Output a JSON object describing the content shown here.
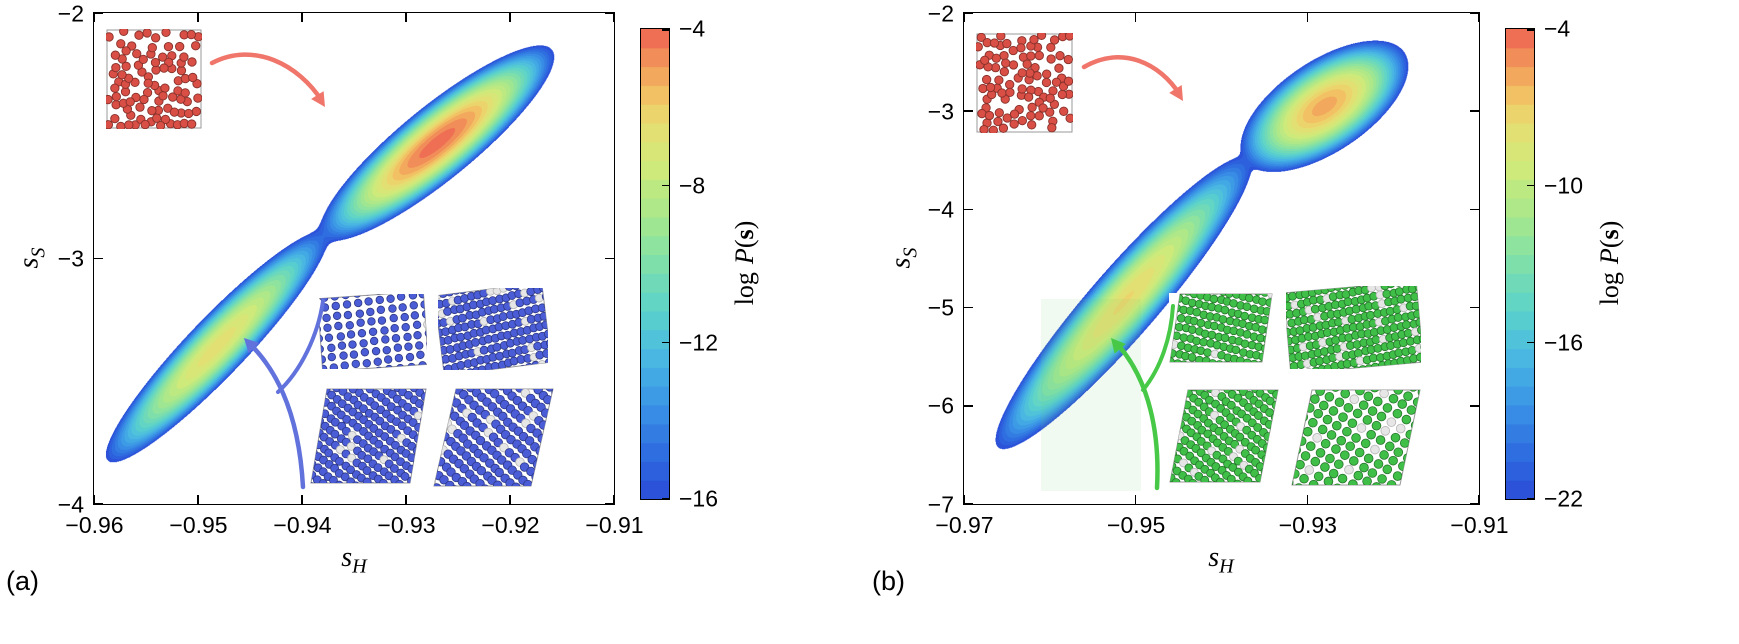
{
  "figure": {
    "colormap": [
      {
        "t": 0.0,
        "c": "#2a4bd7"
      },
      {
        "t": 0.1,
        "c": "#2f6ee0"
      },
      {
        "t": 0.2,
        "c": "#3a93e6"
      },
      {
        "t": 0.3,
        "c": "#49b7e2"
      },
      {
        "t": 0.4,
        "c": "#5bd2cb"
      },
      {
        "t": 0.5,
        "c": "#7edfab"
      },
      {
        "t": 0.6,
        "c": "#a6e88c"
      },
      {
        "t": 0.7,
        "c": "#cdea7b"
      },
      {
        "t": 0.8,
        "c": "#e9de71"
      },
      {
        "t": 0.88,
        "c": "#f3b75f"
      },
      {
        "t": 0.94,
        "c": "#f18d58"
      },
      {
        "t": 1.0,
        "c": "#ee6054"
      }
    ],
    "levels": 25
  },
  "chart_data": [
    {
      "type": "contour",
      "panel": "a",
      "corner_label": "(a)",
      "xlabel": {
        "base": "s",
        "sub": "H"
      },
      "ylabel": {
        "base": "s",
        "sub": "S"
      },
      "xlim": [
        -0.96,
        -0.91
      ],
      "ylim": [
        -4,
        -2
      ],
      "x_ticks": [
        {
          "v": -0.96,
          "label": "−0.96"
        },
        {
          "v": -0.95,
          "label": "−0.95"
        },
        {
          "v": -0.94,
          "label": "−0.94"
        },
        {
          "v": -0.93,
          "label": "−0.93"
        },
        {
          "v": -0.92,
          "label": "−0.92"
        },
        {
          "v": -0.91,
          "label": "−0.91"
        }
      ],
      "y_ticks": [
        {
          "v": -2,
          "label": "−2"
        },
        {
          "v": -3,
          "label": "−3"
        },
        {
          "v": -4,
          "label": "−4"
        }
      ],
      "colorbar": {
        "vmin": -16,
        "vmax": -4,
        "ticks": [
          {
            "v": -4,
            "label": "−4"
          },
          {
            "v": -8,
            "label": "−8"
          },
          {
            "v": -12,
            "label": "−12"
          },
          {
            "v": -16,
            "label": "−16"
          }
        ],
        "label": {
          "word": "log",
          "func": "P",
          "open": "(",
          "arg": "s",
          "close": ")"
        }
      },
      "lobes": [
        {
          "name": "liquid-basin",
          "center": [
            -0.927,
            -2.53
          ],
          "angle_deg": 41,
          "sigma": [
            0.06,
            0.015
          ],
          "peak_logP": -4.2
        },
        {
          "name": "solid-basin",
          "center": [
            -0.9482,
            -3.36
          ],
          "angle_deg": 48,
          "sigma": [
            0.072,
            0.0133
          ],
          "peak_logP": -6.6
        }
      ],
      "insets": {
        "liquid": {
          "name": "disordered-liquid-snapshot",
          "particle_color": "#d94f45"
        },
        "solid": {
          "name": "ordered-crystal-snapshots",
          "count": 4,
          "particle_color": "#4a5cd6"
        }
      },
      "arrow_colors": {
        "liquid": "#f0756a",
        "solid": "#6272dd"
      }
    },
    {
      "type": "contour",
      "panel": "b",
      "corner_label": "(b)",
      "xlabel": {
        "base": "s",
        "sub": "H"
      },
      "ylabel": {
        "base": "s",
        "sub": "S"
      },
      "xlim": [
        -0.97,
        -0.91
      ],
      "ylim": [
        -7,
        -2
      ],
      "x_ticks": [
        {
          "v": -0.97,
          "label": "−0.97"
        },
        {
          "v": -0.95,
          "label": "−0.95"
        },
        {
          "v": -0.93,
          "label": "−0.93"
        },
        {
          "v": -0.91,
          "label": "−0.91"
        }
      ],
      "y_ticks": [
        {
          "v": -2,
          "label": "−2"
        },
        {
          "v": -3,
          "label": "−3"
        },
        {
          "v": -4,
          "label": "−4"
        },
        {
          "v": -5,
          "label": "−5"
        },
        {
          "v": -6,
          "label": "−6"
        },
        {
          "v": -7,
          "label": "−7"
        }
      ],
      "colorbar": {
        "vmin": -22,
        "vmax": -4,
        "ticks": [
          {
            "v": -4,
            "label": "−4"
          },
          {
            "v": -10,
            "label": "−10"
          },
          {
            "v": -16,
            "label": "−16"
          },
          {
            "v": -22,
            "label": "−22"
          }
        ],
        "label": {
          "word": "log",
          "func": "P",
          "open": "(",
          "arg": "s",
          "close": ")"
        }
      },
      "lobes": [
        {
          "name": "liquid-basin",
          "center": [
            -0.928,
            -2.95
          ],
          "angle_deg": 36,
          "sigma": [
            0.0334,
            0.016
          ],
          "peak_logP": -5.8
        },
        {
          "name": "solid-basin",
          "center": [
            -0.9514,
            -4.95
          ],
          "angle_deg": 50.5,
          "sigma": [
            0.071,
            0.0126
          ],
          "peak_logP": -7.5
        }
      ],
      "insets": {
        "liquid": {
          "name": "disordered-liquid-snapshot",
          "particle_color": "#d94f45"
        },
        "solid": {
          "name": "ordered-crystal-snapshots",
          "count": 4,
          "particle_color": "#3fbf47"
        }
      },
      "arrow_colors": {
        "liquid": "#f0756a",
        "solid": "#47c947"
      }
    }
  ]
}
